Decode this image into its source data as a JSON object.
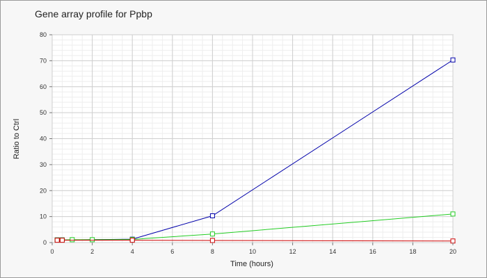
{
  "chart_data": {
    "type": "line",
    "title": "Gene array profile for Ppbp",
    "xlabel": "Time (hours)",
    "ylabel": "Ratio to Ctrl",
    "xlim": [
      0,
      20
    ],
    "ylim": [
      0,
      80
    ],
    "x_ticks": [
      0,
      2,
      4,
      6,
      8,
      10,
      12,
      14,
      16,
      18,
      20
    ],
    "y_ticks": [
      0,
      10,
      20,
      30,
      40,
      50,
      60,
      70,
      80
    ],
    "grid": true,
    "legend": "none",
    "series": [
      {
        "color": "#0000aa",
        "points": [
          [
            0.25,
            1.0
          ],
          [
            0.5,
            1.0
          ],
          [
            4,
            1.3
          ],
          [
            8,
            10.3
          ],
          [
            20,
            70.3
          ]
        ]
      },
      {
        "color": "#22cc22",
        "points": [
          [
            0.25,
            1.0
          ],
          [
            0.5,
            1.0
          ],
          [
            1,
            1.1
          ],
          [
            2,
            1.1
          ],
          [
            4,
            1.2
          ],
          [
            8,
            3.3
          ],
          [
            20,
            11.0
          ]
        ]
      },
      {
        "color": "#cc0000",
        "points": [
          [
            0.25,
            0.9
          ],
          [
            0.5,
            0.9
          ],
          [
            4,
            0.9
          ],
          [
            8,
            0.8
          ],
          [
            20,
            0.6
          ]
        ]
      }
    ]
  }
}
